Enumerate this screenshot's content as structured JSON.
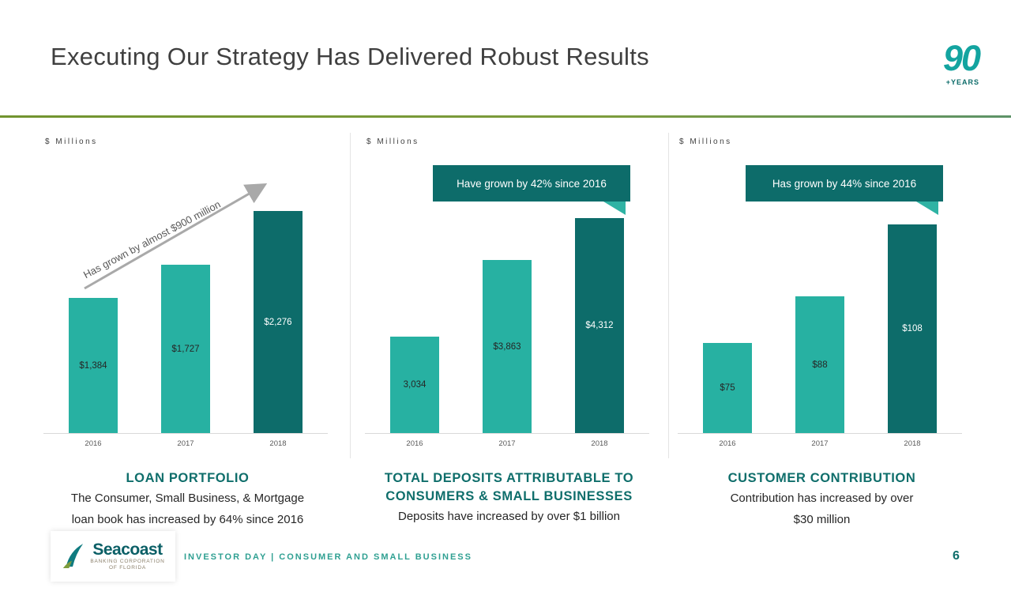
{
  "slide": {
    "title": "Executing Our Strategy Has Delivered Robust Results",
    "logo_90": {
      "number": "90",
      "caption": "+YEARS"
    },
    "footer": {
      "brand": "Seacoast",
      "brand_sub_1": "BANKING CORPORATION",
      "brand_sub_2": "OF FLORIDA",
      "text": "INVESTOR DAY | CONSUMER AND SMALL BUSINESS",
      "page_number": "6"
    }
  },
  "colors": {
    "bar_teal": "#27b1a2",
    "bar_dark_teal": "#0d6c6a",
    "callout_bg": "#0d6c6a",
    "rule_green": "#7d9c3d",
    "footer_teal": "#2fa092"
  },
  "chart_data": [
    {
      "type": "bar",
      "units_label": "$ Millions",
      "categories": [
        "2016",
        "2017",
        "2018"
      ],
      "values": [
        1384,
        1727,
        2276
      ],
      "data_labels": [
        "$1,384",
        "$1,727",
        "$2,276"
      ],
      "ylim": [
        0,
        2433
      ],
      "grid": false,
      "annotation": "Has grown by almost $900  million",
      "caption_title": [
        "LOAN PORTFOLIO"
      ],
      "caption_body": [
        "The Consumer, Small Business, & Mortgage",
        "loan book has increased by 64% since 2016"
      ]
    },
    {
      "type": "bar",
      "units_label": "$ Millions",
      "categories": [
        "2016",
        "2017",
        "2018"
      ],
      "values": [
        3034,
        3863,
        4312
      ],
      "data_labels": [
        "3,034",
        "$3,863",
        "$4,312"
      ],
      "ylim": [
        2000,
        4550
      ],
      "grid": false,
      "callout": "Have grown by 42% since 2016",
      "caption_title": [
        "TOTAL DEPOSITS ATTRIBUTABLE TO",
        "CONSUMERS & SMALL BUSINESSES"
      ],
      "caption_body": [
        "Deposits have increased by over $1 billion"
      ]
    },
    {
      "type": "bar",
      "units_label": "$ Millions",
      "categories": [
        "2016",
        "2017",
        "2018"
      ],
      "values": [
        75,
        88,
        108
      ],
      "data_labels": [
        "$75",
        "$88",
        "$108"
      ],
      "ylim": [
        50,
        116
      ],
      "grid": false,
      "callout": "Has grown by 44% since 2016",
      "caption_title": [
        "CUSTOMER CONTRIBUTION"
      ],
      "caption_body": [
        "Contribution has increased by over",
        "$30 million"
      ]
    }
  ]
}
